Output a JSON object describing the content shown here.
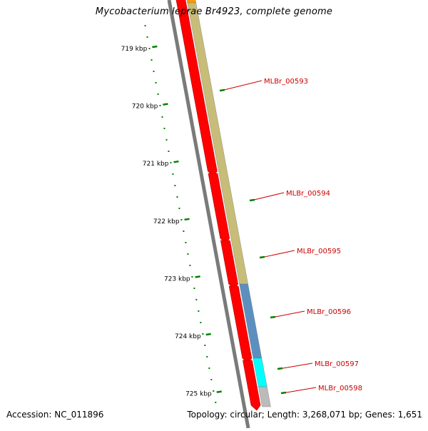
{
  "title": "Mycobacterium leprae Br4923, complete genome",
  "accession": "Accession: NC_011896",
  "topology_info": "Topology: circular; Length: 3,268,071 bp; Genes: 1,651",
  "colors": {
    "backbone": "#7a7a7a",
    "cds": "#ff0000",
    "tick": "#008000",
    "label": "#cc0000",
    "band_khaki": "#c8bd78",
    "band_blue": "#5b8fc0",
    "band_cyan": "#00ffff",
    "band_grey": "#bbbbbb",
    "band_orange": "#ff9900"
  },
  "ticks": [
    "719 kbp",
    "720 kbp",
    "721 kbp",
    "722 kbp",
    "723 kbp",
    "724 kbp",
    "725 kbp"
  ],
  "genes": [
    "MLBr_00593",
    "MLBr_00594",
    "MLBr_00595",
    "MLBr_00596",
    "MLBr_00597",
    "MLBr_00598"
  ]
}
